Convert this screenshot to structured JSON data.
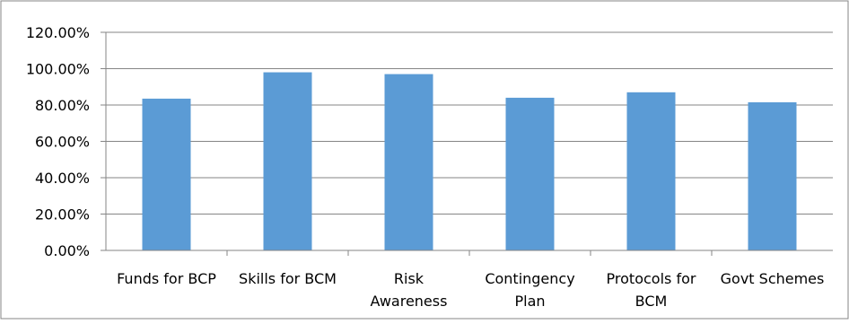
{
  "chart_data": {
    "type": "bar",
    "title": "",
    "xlabel": "",
    "ylabel": "",
    "categories": [
      [
        "Funds for BCP"
      ],
      [
        "Skills for BCM"
      ],
      [
        "Risk",
        "Awareness"
      ],
      [
        "Contingency",
        "Plan"
      ],
      [
        "Protocols for",
        "BCM"
      ],
      [
        "Govt Schemes"
      ]
    ],
    "series": [
      {
        "values": [
          83.5,
          98.0,
          97.0,
          84.0,
          87.0,
          81.5
        ]
      }
    ],
    "ylim": [
      0,
      120
    ],
    "yticks": [
      "0.00%",
      "20.00%",
      "40.00%",
      "60.00%",
      "80.00%",
      "100.00%",
      "120.00%"
    ],
    "grid": true,
    "legend": "none",
    "colors": {
      "bar": "#5b9bd5",
      "grid": "#868686",
      "axis": "#868686",
      "frame": "#868686"
    }
  }
}
